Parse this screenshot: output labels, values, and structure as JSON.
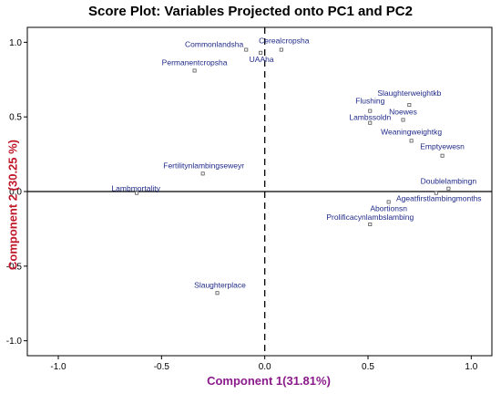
{
  "chart_data": {
    "type": "scatter",
    "title": "Score Plot: Variables Projected onto PC1 and PC2",
    "xlabel": "Component 1(31.81%)",
    "ylabel": "Component 2 (30.25 %)",
    "xlim": [
      -1.15,
      1.1
    ],
    "ylim": [
      -1.1,
      1.1
    ],
    "x_ticks": [
      -1.0,
      -0.5,
      0.0,
      0.5,
      1.0
    ],
    "y_ticks": [
      -1.0,
      -0.5,
      0.0,
      0.5,
      1.0
    ],
    "x_tick_labels": [
      "-1.0",
      "-0.5",
      "0.0",
      "0.5",
      "1.0"
    ],
    "y_tick_labels": [
      "-1.0",
      "-0.5",
      "0.0",
      "0.5",
      "1.0"
    ],
    "grid": false,
    "reference_lines": {
      "y0": "solid",
      "x0": "dashed"
    },
    "points": [
      {
        "label": "Commonlandsha",
        "x": -0.09,
        "y": 0.95
      },
      {
        "label": "UAAha",
        "x": -0.02,
        "y": 0.93
      },
      {
        "label": "Cerealcropsha",
        "x": 0.08,
        "y": 0.95
      },
      {
        "label": "Permanentcropsha",
        "x": -0.34,
        "y": 0.81
      },
      {
        "label": "Slaughterweightkb",
        "x": 0.7,
        "y": 0.58
      },
      {
        "label": "Flushing",
        "x": 0.51,
        "y": 0.54
      },
      {
        "label": "Noewes",
        "x": 0.67,
        "y": 0.48
      },
      {
        "label": "Lambssoldn",
        "x": 0.51,
        "y": 0.46
      },
      {
        "label": "Weaningweightkg",
        "x": 0.71,
        "y": 0.34
      },
      {
        "label": "Emptyewesn",
        "x": 0.86,
        "y": 0.24
      },
      {
        "label": "Fertilitynlambingseweyr",
        "x": -0.3,
        "y": 0.12
      },
      {
        "label": "Lambmortality",
        "x": -0.62,
        "y": -0.01
      },
      {
        "label": "Doublelambingn",
        "x": 0.89,
        "y": 0.02
      },
      {
        "label": "Ageatfirstlambingmonths",
        "x": 0.83,
        "y": -0.01
      },
      {
        "label": "Abortionsn",
        "x": 0.6,
        "y": -0.07
      },
      {
        "label": "Prolificacynlambslambing",
        "x": 0.51,
        "y": -0.22
      },
      {
        "label": "Slaughterplace",
        "x": -0.23,
        "y": -0.68
      }
    ]
  },
  "colors": {
    "title": "#000000",
    "xlabel": "#8b1a8b",
    "ylabel": "#c0182a",
    "point_label": "#1f2a88",
    "marker": "#555555",
    "axes": "#000000"
  }
}
